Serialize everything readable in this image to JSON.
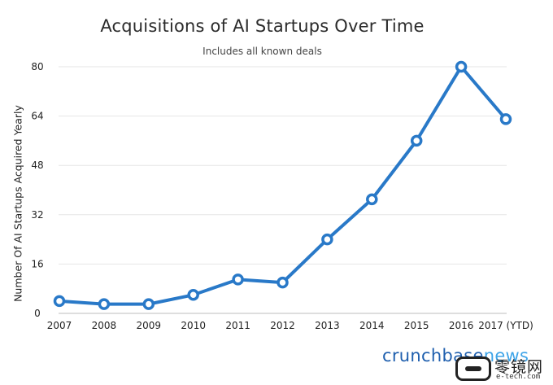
{
  "chart_data": {
    "type": "line",
    "title": "Acquisitions of AI Startups Over Time",
    "subtitle": "Includes all known deals",
    "ylabel": "Number Of AI Startups Acquired Yearly",
    "xlabel": "",
    "categories": [
      "2007",
      "2008",
      "2009",
      "2010",
      "2011",
      "2012",
      "2013",
      "2014",
      "2015",
      "2016",
      "2017 (YTD)"
    ],
    "values": [
      4,
      3,
      3,
      6,
      11,
      10,
      24,
      37,
      56,
      80,
      63
    ],
    "ylim": [
      0,
      80
    ],
    "yticks": [
      0,
      16,
      32,
      48,
      64,
      80
    ],
    "grid": true,
    "line_color": "#2979c8"
  },
  "brand": {
    "part1": "crunchbase",
    "part2": "news"
  },
  "watermark": {
    "text": "零镜网",
    "sub": "e-tech.com"
  }
}
